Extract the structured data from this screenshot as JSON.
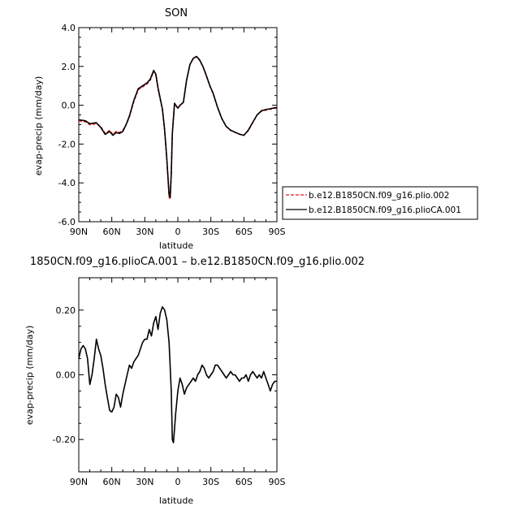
{
  "chart_data": [
    {
      "type": "line",
      "title": "SON",
      "xlabel": "latitude",
      "ylabel": "evap-precip (mm/day)",
      "xlim": [
        90,
        -90
      ],
      "ylim": [
        -6.0,
        4.0
      ],
      "xticks": [
        90,
        60,
        30,
        0,
        -30,
        -60,
        -90
      ],
      "xtick_labels": [
        "90N",
        "60N",
        "30N",
        "0",
        "30S",
        "60S",
        "90S"
      ],
      "yticks": [
        -6.0,
        -4.0,
        -2.0,
        0.0,
        2.0,
        4.0
      ],
      "ytick_labels": [
        "-6.0",
        "-4.0",
        "-2.0",
        "0.0",
        "2.0",
        "4.0"
      ],
      "legend_position": "right",
      "series": [
        {
          "name": "b.e12.B1850CN.f09_g16.plio.002",
          "color": "#e8191c",
          "dash": "dashed",
          "x": [
            90,
            84,
            80,
            74,
            70,
            66,
            62,
            59,
            56,
            53,
            50,
            47,
            44,
            40,
            36,
            32,
            28,
            25,
            22,
            20,
            18,
            16,
            14,
            12,
            10,
            8,
            7,
            6,
            5,
            3,
            1,
            0,
            -2,
            -5,
            -8,
            -11,
            -14,
            -17,
            -20,
            -23,
            -26,
            -29,
            -32,
            -36,
            -40,
            -44,
            -48,
            -52,
            -56,
            -60,
            -64,
            -68,
            -72,
            -76,
            -80,
            -84,
            -88,
            -90
          ],
          "y": [
            -0.8,
            -0.85,
            -1.0,
            -0.95,
            -1.1,
            -1.45,
            -1.3,
            -1.5,
            -1.35,
            -1.4,
            -1.3,
            -1.0,
            -0.6,
            0.2,
            0.8,
            0.95,
            1.1,
            1.3,
            1.75,
            1.55,
            0.85,
            0.3,
            -0.2,
            -1.3,
            -2.8,
            -4.7,
            -4.85,
            -3.6,
            -1.5,
            0.1,
            -0.05,
            -0.15,
            0.0,
            0.15,
            1.3,
            2.1,
            2.4,
            2.5,
            2.3,
            1.95,
            1.5,
            1.0,
            0.6,
            -0.1,
            -0.7,
            -1.1,
            -1.3,
            -1.4,
            -1.5,
            -1.55,
            -1.3,
            -0.9,
            -0.5,
            -0.3,
            -0.25,
            -0.2,
            -0.15,
            -0.15
          ]
        },
        {
          "name": "b.e12.B1850CN.f09_g16.plioCA.001",
          "color": "#000000",
          "dash": "solid",
          "x": [
            90,
            84,
            80,
            74,
            70,
            66,
            62,
            59,
            56,
            53,
            50,
            47,
            44,
            40,
            36,
            32,
            28,
            25,
            22,
            20,
            18,
            16,
            14,
            12,
            10,
            8,
            7,
            6,
            5,
            3,
            1,
            0,
            -2,
            -5,
            -8,
            -11,
            -14,
            -17,
            -20,
            -23,
            -26,
            -29,
            -32,
            -36,
            -40,
            -44,
            -48,
            -52,
            -56,
            -60,
            -64,
            -68,
            -72,
            -76,
            -80,
            -84,
            -88,
            -90
          ],
          "y": [
            -0.75,
            -0.8,
            -0.95,
            -0.9,
            -1.15,
            -1.5,
            -1.35,
            -1.55,
            -1.4,
            -1.45,
            -1.35,
            -1.0,
            -0.55,
            0.25,
            0.85,
            1.0,
            1.15,
            1.35,
            1.8,
            1.6,
            0.9,
            0.35,
            -0.2,
            -1.25,
            -2.75,
            -4.6,
            -4.75,
            -3.5,
            -1.45,
            0.1,
            -0.08,
            -0.15,
            0.0,
            0.15,
            1.3,
            2.1,
            2.42,
            2.52,
            2.32,
            1.97,
            1.52,
            1.02,
            0.62,
            -0.09,
            -0.69,
            -1.09,
            -1.29,
            -1.39,
            -1.49,
            -1.55,
            -1.28,
            -0.88,
            -0.5,
            -0.28,
            -0.22,
            -0.18,
            -0.13,
            -0.13
          ]
        }
      ]
    },
    {
      "type": "line",
      "title": "1850CN.f09_g16.plioCA.001 – b.e12.B1850CN.f09_g16.plio.002",
      "xlabel": "latitude",
      "ylabel": "evap-precip (mm/day)",
      "xlim": [
        90,
        -90
      ],
      "ylim": [
        -0.3,
        0.3
      ],
      "xticks": [
        90,
        60,
        30,
        0,
        -30,
        -60,
        -90
      ],
      "xtick_labels": [
        "90N",
        "60N",
        "30N",
        "0",
        "30S",
        "60S",
        "90S"
      ],
      "yticks": [
        -0.2,
        0.0,
        0.2
      ],
      "ytick_labels": [
        "-0.20",
        "0.00",
        "0.20"
      ],
      "series": [
        {
          "color": "#000000",
          "dash": "solid",
          "x": [
            90,
            88,
            86,
            84,
            82,
            80,
            78,
            76,
            74,
            72,
            70,
            68,
            66,
            64,
            62,
            60,
            58,
            56,
            54,
            52,
            50,
            48,
            46,
            44,
            42,
            40,
            38,
            36,
            34,
            32,
            30,
            28,
            26,
            24,
            22,
            20,
            18,
            16,
            14,
            12,
            10,
            8,
            6,
            5,
            4,
            2,
            0,
            -2,
            -4,
            -6,
            -8,
            -10,
            -12,
            -14,
            -16,
            -18,
            -20,
            -22,
            -24,
            -26,
            -28,
            -30,
            -32,
            -34,
            -36,
            -38,
            -40,
            -42,
            -44,
            -46,
            -48,
            -50,
            -52,
            -54,
            -56,
            -58,
            -60,
            -62,
            -64,
            -66,
            -68,
            -70,
            -72,
            -74,
            -76,
            -78,
            -80,
            -82,
            -84,
            -86,
            -88,
            -90
          ],
          "y": [
            0.05,
            0.08,
            0.09,
            0.08,
            0.05,
            -0.03,
            0.0,
            0.05,
            0.11,
            0.08,
            0.06,
            0.02,
            -0.03,
            -0.07,
            -0.11,
            -0.115,
            -0.1,
            -0.06,
            -0.07,
            -0.1,
            -0.06,
            -0.03,
            0.0,
            0.03,
            0.02,
            0.04,
            0.05,
            0.06,
            0.08,
            0.1,
            0.11,
            0.11,
            0.14,
            0.12,
            0.16,
            0.18,
            0.14,
            0.19,
            0.21,
            0.2,
            0.17,
            0.1,
            -0.05,
            -0.2,
            -0.21,
            -0.12,
            -0.05,
            -0.01,
            -0.03,
            -0.06,
            -0.04,
            -0.03,
            -0.02,
            -0.01,
            -0.02,
            0.0,
            0.01,
            0.03,
            0.02,
            0.0,
            -0.01,
            0.0,
            0.01,
            0.03,
            0.03,
            0.02,
            0.01,
            0.0,
            -0.01,
            0.0,
            0.01,
            0.0,
            0.0,
            -0.01,
            -0.02,
            -0.01,
            -0.01,
            0.0,
            -0.02,
            0.0,
            0.01,
            0.0,
            -0.01,
            0.0,
            -0.01,
            0.01,
            -0.01,
            -0.03,
            -0.05,
            -0.03,
            -0.02,
            -0.02
          ]
        }
      ]
    }
  ]
}
